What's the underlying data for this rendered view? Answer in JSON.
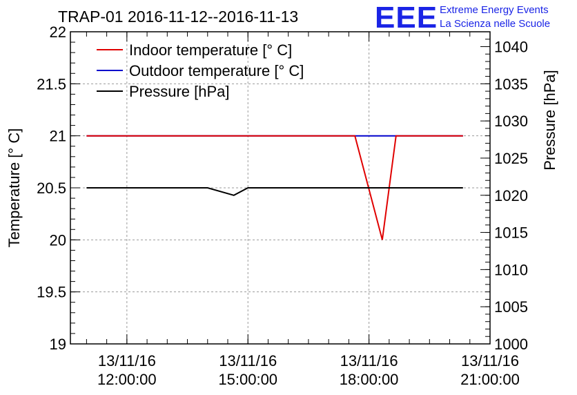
{
  "logo": {
    "letters": "EEE",
    "line1": "Extreme Energy Events",
    "line2": "La Scienza nelle Scuole",
    "color": "#1a24e6"
  },
  "chart_data": {
    "type": "line",
    "title": "TRAP-01 2016-11-12--2016-11-13",
    "xlabel": "",
    "ylabel": "Temperature [° C]",
    "y2label": "Pressure [hPa]",
    "xlim": [
      10.6,
      21.0
    ],
    "ylim": [
      19.0,
      22.0
    ],
    "y2lim": [
      1000,
      1042
    ],
    "grid": true,
    "legend_position": "top-left",
    "x_ticks": [
      {
        "value": 12,
        "line1": "13/11/16",
        "line2": "12:00:00"
      },
      {
        "value": 15,
        "line1": "13/11/16",
        "line2": "15:00:00"
      },
      {
        "value": 18,
        "line1": "13/11/16",
        "line2": "18:00:00"
      },
      {
        "value": 21,
        "line1": "13/11/16",
        "line2": "21:00:00"
      }
    ],
    "y_ticks": [
      "19",
      "19.5",
      "20",
      "20.5",
      "21",
      "21.5",
      "22"
    ],
    "y2_ticks": [
      "1000",
      "1005",
      "1010",
      "1015",
      "1020",
      "1025",
      "1030",
      "1035",
      "1040"
    ],
    "series": [
      {
        "name": "Indoor temperature [° C]",
        "axis": "left",
        "color": "#e00000",
        "x": [
          11.0,
          17.65,
          18.33,
          18.67,
          20.33
        ],
        "y": [
          21.0,
          21.0,
          20.0,
          21.0,
          21.0
        ]
      },
      {
        "name": "Outdoor temperature [° C]",
        "axis": "left",
        "color": "#0000cc",
        "x": [
          11.0,
          20.33
        ],
        "y": [
          21.0,
          21.0
        ]
      },
      {
        "name": "Pressure [hPa]",
        "axis": "right",
        "color": "#000000",
        "x": [
          11.0,
          14.0,
          14.65,
          15.0,
          20.33
        ],
        "y": [
          1021.0,
          1021.0,
          1020.0,
          1021.0,
          1021.0
        ]
      }
    ]
  }
}
